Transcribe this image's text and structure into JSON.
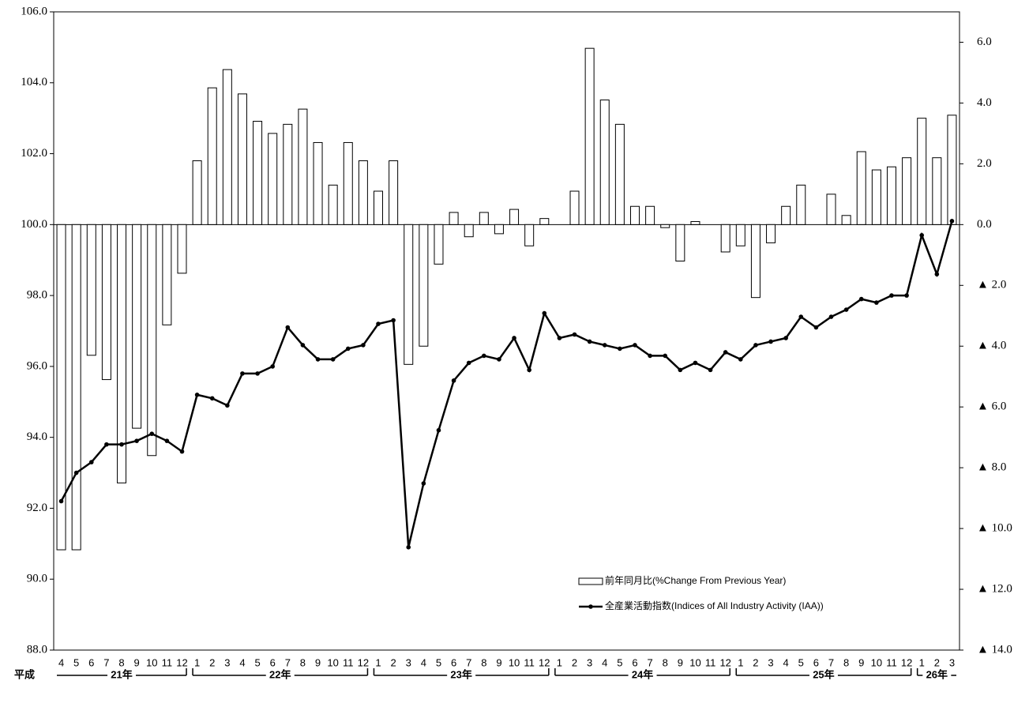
{
  "chart_data": {
    "type": "bar_line",
    "categories": [
      "4",
      "5",
      "6",
      "7",
      "8",
      "9",
      "10",
      "11",
      "12",
      "1",
      "2",
      "3",
      "4",
      "5",
      "6",
      "7",
      "8",
      "9",
      "10",
      "11",
      "12",
      "1",
      "2",
      "3",
      "4",
      "5",
      "6",
      "7",
      "8",
      "9",
      "10",
      "11",
      "12",
      "1",
      "2",
      "3",
      "4",
      "5",
      "6",
      "7",
      "8",
      "9",
      "10",
      "11",
      "12",
      "1",
      "2",
      "3",
      "4",
      "5",
      "6",
      "7",
      "8",
      "9",
      "10",
      "11",
      "12",
      "1",
      "2",
      "3"
    ],
    "era_label": "平成",
    "year_labels": [
      "21年",
      "22年",
      "23年",
      "24年",
      "25年",
      "26年"
    ],
    "series": [
      {
        "name": "前年同月比(%Change From Previous Year)",
        "type": "bar",
        "axis": "y2",
        "color": "#ffffff",
        "values": [
          -10.7,
          -10.7,
          -4.3,
          -5.1,
          -8.5,
          -6.7,
          -7.6,
          -3.3,
          -1.6,
          2.1,
          4.5,
          5.1,
          4.3,
          3.4,
          3.0,
          3.3,
          3.8,
          2.7,
          1.3,
          2.7,
          2.1,
          1.1,
          2.1,
          -4.6,
          -4.0,
          -1.3,
          0.4,
          -0.4,
          0.4,
          -0.3,
          0.5,
          -0.7,
          0.2,
          0,
          1.1,
          5.8,
          4.1,
          3.3,
          0.6,
          0.6,
          -0.1,
          -1.2,
          0.1,
          0,
          -0.9,
          -0.7,
          -2.4,
          -0.6,
          0.6,
          1.3,
          0,
          1.0,
          0.3,
          2.4,
          1.8,
          1.9,
          2.2,
          3.5,
          2.2,
          3.6
        ]
      },
      {
        "name": "全産業活動指数(Indices of All Industry Activity (IAA))",
        "type": "line",
        "color": "#000000",
        "values": [
          92.2,
          93.0,
          93.3,
          93.8,
          93.8,
          93.9,
          94.1,
          93.9,
          93.6,
          95.2,
          95.1,
          94.9,
          95.8,
          95.8,
          96.0,
          97.1,
          96.6,
          96.2,
          96.2,
          96.5,
          96.6,
          97.2,
          97.3,
          90.9,
          92.7,
          94.2,
          95.6,
          96.1,
          96.3,
          96.2,
          96.8,
          95.9,
          97.5,
          96.8,
          96.9,
          96.7,
          96.6,
          96.5,
          96.6,
          96.3,
          96.3,
          95.9,
          96.1,
          95.9,
          96.4,
          96.2,
          96.6,
          96.7,
          96.8,
          97.4,
          97.1,
          97.4,
          97.6,
          97.9,
          97.8,
          98.0,
          98.0,
          99.7,
          98.6,
          100.1
        ]
      }
    ],
    "ylim": [
      88,
      106
    ],
    "yticks": [
      {
        "value": 88,
        "label": "88.0"
      },
      {
        "value": 90,
        "label": "90.0"
      },
      {
        "value": 92,
        "label": "92.0"
      },
      {
        "value": 94,
        "label": "94.0"
      },
      {
        "value": 96,
        "label": "96.0"
      },
      {
        "value": 98,
        "label": "98.0"
      },
      {
        "value": 100,
        "label": "100.0"
      },
      {
        "value": 102,
        "label": "102.0"
      },
      {
        "value": 104,
        "label": "104.0"
      },
      {
        "value": 106,
        "label": "106.0"
      }
    ],
    "y2lim": [
      -14,
      7
    ],
    "y2ticks": [
      {
        "value": 6,
        "label": "6.0"
      },
      {
        "value": 4,
        "label": "4.0"
      },
      {
        "value": 2,
        "label": "2.0"
      },
      {
        "value": 0,
        "label": "0.0"
      },
      {
        "value": -2,
        "label": "▲ 2.0"
      },
      {
        "value": -4,
        "label": "▲ 4.0"
      },
      {
        "value": -6,
        "label": "▲ 6.0"
      },
      {
        "value": -8,
        "label": "▲ 8.0"
      },
      {
        "value": -10,
        "label": "▲ 10.0"
      },
      {
        "value": -12,
        "label": "▲ 12.0"
      },
      {
        "value": -14,
        "label": "▲ 14.0"
      }
    ]
  }
}
